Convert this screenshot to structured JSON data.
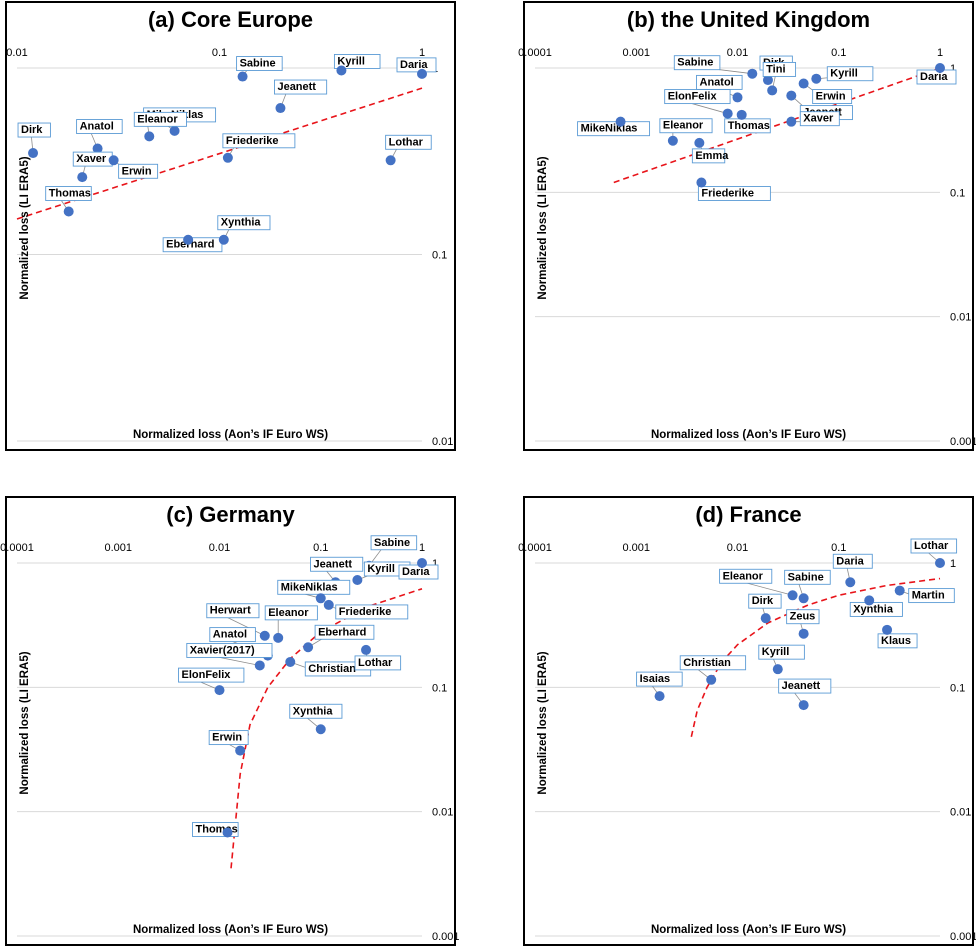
{
  "x_axis_label": "Normalized loss (Aon’s IF Euro WS)",
  "y_axis_label": "Normalized loss (LI ERA5)",
  "colors": {
    "point": "#4472c4",
    "fit": "#e8141a",
    "label_border": "#5b9bd5",
    "leader": "#8c8c8c"
  },
  "chart_data": [
    {
      "type": "scatter",
      "title": "(a) Core Europe",
      "xlabel": "Normalized loss (Aon’s IF Euro WS)",
      "ylabel": "Normalized loss (LI ERA5)",
      "xscale": "log",
      "yscale": "log",
      "xlim": [
        0.01,
        1
      ],
      "ylim": [
        0.01,
        1
      ],
      "x_ticks": [
        "0.01",
        "0.1",
        "1"
      ],
      "y_ticks": [
        "0.01",
        "0.1",
        "1"
      ],
      "fit_line": {
        "style": "dashed",
        "x": [
          0.01,
          1
        ],
        "y": [
          0.155,
          0.78
        ]
      },
      "points": [
        {
          "name": "Sabine",
          "x": 0.13,
          "y": 0.9
        },
        {
          "name": "Kyrill",
          "x": 0.4,
          "y": 0.97
        },
        {
          "name": "Daria",
          "x": 1.0,
          "y": 0.93
        },
        {
          "name": "Jeanett",
          "x": 0.2,
          "y": 0.61
        },
        {
          "name": "MikeNiklas",
          "x": 0.06,
          "y": 0.46
        },
        {
          "name": "Eleanor",
          "x": 0.045,
          "y": 0.43
        },
        {
          "name": "Anatol",
          "x": 0.025,
          "y": 0.37
        },
        {
          "name": "Dirk",
          "x": 0.012,
          "y": 0.35
        },
        {
          "name": "Xaver",
          "x": 0.021,
          "y": 0.26
        },
        {
          "name": "Erwin",
          "x": 0.03,
          "y": 0.32
        },
        {
          "name": "Friederike",
          "x": 0.11,
          "y": 0.33
        },
        {
          "name": "Lothar",
          "x": 0.7,
          "y": 0.32
        },
        {
          "name": "Thomas",
          "x": 0.018,
          "y": 0.17
        },
        {
          "name": "Eberhard",
          "x": 0.07,
          "y": 0.12
        },
        {
          "name": "Xynthia",
          "x": 0.105,
          "y": 0.12
        }
      ]
    },
    {
      "type": "scatter",
      "title": "(b) the United Kingdom",
      "xlabel": "Normalized loss (Aon’s IF Euro WS)",
      "ylabel": "Normalized loss (LI ERA5)",
      "xscale": "log",
      "yscale": "log",
      "xlim": [
        0.0001,
        1
      ],
      "ylim": [
        0.001,
        1
      ],
      "x_ticks": [
        "0.0001",
        "0.001",
        "0.01",
        "0.1",
        "1"
      ],
      "y_ticks": [
        "0.001",
        "0.01",
        "0.1",
        "1"
      ],
      "fit_line": {
        "style": "dashed",
        "x": [
          0.0006,
          1
        ],
        "y": [
          0.12,
          1.0
        ]
      },
      "points": [
        {
          "name": "Sabine",
          "x": 0.014,
          "y": 0.9
        },
        {
          "name": "Dirk",
          "x": 0.02,
          "y": 0.8
        },
        {
          "name": "Kyrill",
          "x": 0.06,
          "y": 0.82
        },
        {
          "name": "Daria",
          "x": 1.0,
          "y": 1.0
        },
        {
          "name": "Anatol",
          "x": 0.01,
          "y": 0.58
        },
        {
          "name": "Erwin",
          "x": 0.045,
          "y": 0.75
        },
        {
          "name": "Tini",
          "x": 0.022,
          "y": 0.66
        },
        {
          "name": "Jeanett",
          "x": 0.034,
          "y": 0.6
        },
        {
          "name": "ElonFelix",
          "x": 0.008,
          "y": 0.43
        },
        {
          "name": "Thomas",
          "x": 0.011,
          "y": 0.42
        },
        {
          "name": "Xaver",
          "x": 0.034,
          "y": 0.37
        },
        {
          "name": "MikeNiklas",
          "x": 0.0007,
          "y": 0.37
        },
        {
          "name": "Eleanor",
          "x": 0.0023,
          "y": 0.26
        },
        {
          "name": "Emma",
          "x": 0.0042,
          "y": 0.25
        },
        {
          "name": "Friederike",
          "x": 0.0044,
          "y": 0.12
        }
      ]
    },
    {
      "type": "scatter",
      "title": "(c) Germany",
      "xlabel": "Normalized loss (Aon’s IF Euro WS)",
      "ylabel": "Normalized loss (LI ERA5)",
      "xscale": "log",
      "yscale": "log",
      "xlim": [
        0.0001,
        1
      ],
      "ylim": [
        0.001,
        1
      ],
      "x_ticks": [
        "0.0001",
        "0.001",
        "0.01",
        "0.1",
        "1"
      ],
      "y_ticks": [
        "0.001",
        "0.01",
        "0.1",
        "1"
      ],
      "fit_line": {
        "style": "dashed",
        "x": [
          0.013,
          0.016,
          0.02,
          0.03,
          0.05,
          0.1,
          0.3,
          1.0
        ],
        "y": [
          0.0035,
          0.02,
          0.05,
          0.1,
          0.17,
          0.28,
          0.45,
          0.62
        ]
      },
      "points": [
        {
          "name": "Sabine",
          "x": 0.3,
          "y": 0.95
        },
        {
          "name": "Jeanett",
          "x": 0.14,
          "y": 0.7
        },
        {
          "name": "Kyrill",
          "x": 0.23,
          "y": 0.73
        },
        {
          "name": "Daria",
          "x": 1.0,
          "y": 1.0
        },
        {
          "name": "MikeNiklas",
          "x": 0.1,
          "y": 0.52
        },
        {
          "name": "Friederike",
          "x": 0.12,
          "y": 0.46
        },
        {
          "name": "Herwart",
          "x": 0.028,
          "y": 0.26
        },
        {
          "name": "Eleanor",
          "x": 0.038,
          "y": 0.25
        },
        {
          "name": "Eberhard",
          "x": 0.075,
          "y": 0.21
        },
        {
          "name": "Anatol",
          "x": 0.03,
          "y": 0.18
        },
        {
          "name": "Xavier(2017)",
          "x": 0.025,
          "y": 0.15
        },
        {
          "name": "Christian",
          "x": 0.05,
          "y": 0.16
        },
        {
          "name": "Lothar",
          "x": 0.28,
          "y": 0.2
        },
        {
          "name": "ElonFelix",
          "x": 0.01,
          "y": 0.095
        },
        {
          "name": "Xynthia",
          "x": 0.1,
          "y": 0.046
        },
        {
          "name": "Erwin",
          "x": 0.016,
          "y": 0.031
        },
        {
          "name": "Thomas",
          "x": 0.012,
          "y": 0.0068
        }
      ]
    },
    {
      "type": "scatter",
      "title": "(d) France",
      "xlabel": "Normalized loss (Aon’s IF Euro WS)",
      "ylabel": "Normalized loss (LI ERA5)",
      "xscale": "log",
      "yscale": "log",
      "xlim": [
        0.0001,
        1
      ],
      "ylim": [
        0.001,
        1
      ],
      "x_ticks": [
        "0.0001",
        "0.001",
        "0.01",
        "0.1",
        "1"
      ],
      "y_ticks": [
        "0.001",
        "0.01",
        "0.1",
        "1"
      ],
      "fit_line": {
        "style": "dashed",
        "x": [
          0.0035,
          0.004,
          0.005,
          0.007,
          0.01,
          0.02,
          0.05,
          0.1,
          0.3,
          1.0
        ],
        "y": [
          0.04,
          0.065,
          0.1,
          0.16,
          0.22,
          0.33,
          0.46,
          0.55,
          0.66,
          0.75
        ]
      },
      "points": [
        {
          "name": "Lothar",
          "x": 1.0,
          "y": 1.0
        },
        {
          "name": "Daria",
          "x": 0.13,
          "y": 0.7
        },
        {
          "name": "Martin",
          "x": 0.4,
          "y": 0.6
        },
        {
          "name": "Sabine",
          "x": 0.045,
          "y": 0.52
        },
        {
          "name": "Eleanor",
          "x": 0.035,
          "y": 0.55
        },
        {
          "name": "Dirk",
          "x": 0.019,
          "y": 0.36
        },
        {
          "name": "Zeus",
          "x": 0.045,
          "y": 0.27
        },
        {
          "name": "Xynthia",
          "x": 0.2,
          "y": 0.5
        },
        {
          "name": "Klaus",
          "x": 0.3,
          "y": 0.29
        },
        {
          "name": "Kyrill",
          "x": 0.025,
          "y": 0.14
        },
        {
          "name": "Christian",
          "x": 0.0055,
          "y": 0.115
        },
        {
          "name": "Isaias",
          "x": 0.0017,
          "y": 0.085
        },
        {
          "name": "Jeanett",
          "x": 0.045,
          "y": 0.072
        }
      ]
    }
  ]
}
